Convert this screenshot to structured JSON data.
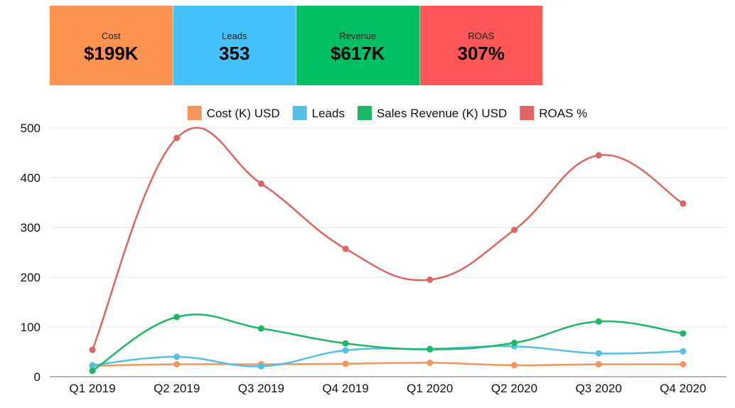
{
  "kpis": [
    {
      "label": "Cost",
      "value": "$199K",
      "color": "#fc9350"
    },
    {
      "label": "Leads",
      "value": "353",
      "color": "#46c2fa"
    },
    {
      "label": "Revenue",
      "value": "$617K",
      "color": "#00bf63"
    },
    {
      "label": "ROAS",
      "value": "307%",
      "color": "#ff5757"
    }
  ],
  "chart_data": {
    "type": "line",
    "categories": [
      "Q1 2019",
      "Q2 2019",
      "Q3 2019",
      "Q4 2019",
      "Q1 2020",
      "Q2 2020",
      "Q3 2020",
      "Q4 2020"
    ],
    "series": [
      {
        "name": "Cost (K) USD",
        "color": "#f4965a",
        "values": [
          22,
          25,
          25,
          26,
          28,
          23,
          25,
          25
        ]
      },
      {
        "name": "Leads",
        "color": "#55bfe6",
        "values": [
          23,
          40,
          21,
          53,
          56,
          61,
          47,
          51
        ]
      },
      {
        "name": "Sales Revenue (K) USD",
        "color": "#1cb866",
        "values": [
          12,
          120,
          97,
          67,
          55,
          68,
          111,
          87
        ]
      },
      {
        "name": "ROAS %",
        "color": "#dd6563",
        "values": [
          54,
          480,
          388,
          257,
          195,
          295,
          445,
          348
        ]
      }
    ],
    "yticks": [
      0,
      100,
      200,
      300,
      400,
      500
    ],
    "ylim": [
      0,
      500
    ],
    "legend_position": "top",
    "grid": true,
    "title": "",
    "xlabel": "",
    "ylabel": ""
  }
}
